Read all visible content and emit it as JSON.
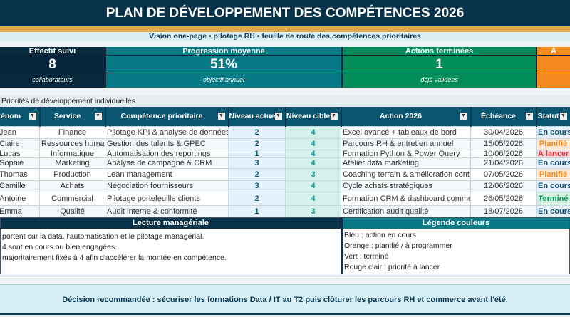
{
  "title": "PLAN DE DÉVELOPPEMENT DES COMPÉTENCES 2026",
  "subtitle": "Vision one-page • pilotage RH • feuille de route des compétences prioritaires",
  "kpis": [
    {
      "label": "Effectif suivi",
      "value": "8",
      "sub": "collaborateurs",
      "color": "#062a3c"
    },
    {
      "label": "Progression moyenne",
      "value": "51%",
      "sub": "objectif annuel",
      "color": "#087a86"
    },
    {
      "label": "Actions terminées",
      "value": "1",
      "sub": "déjà validées",
      "color": "#028c5a"
    },
    {
      "label": "À",
      "value": "",
      "sub": "",
      "color": "#f58a1f"
    }
  ],
  "section_title": "Priorités de développement individuelles",
  "table": {
    "headers": [
      "Prénom",
      "Service",
      "Compétence prioritaire",
      "Niveau actuel",
      "Niveau cible",
      "Action 2026",
      "Échéance",
      "Statut"
    ],
    "rows": [
      [
        "Jean",
        "Finance",
        "Pilotage KPI & analyse de données",
        "2",
        "4",
        "Excel avancé + tableaux de bord",
        "30/04/2026",
        "En cours"
      ],
      [
        "Claire",
        "Ressources humaines",
        "Gestion des talents & GPEC",
        "2",
        "4",
        "Parcours RH & entretien annuel",
        "15/05/2026",
        "Planifié"
      ],
      [
        "Lucas",
        "Informatique",
        "Automatisation des reportings",
        "1",
        "4",
        "Formation Python & Power Query",
        "10/06/2026",
        "À lancer"
      ],
      [
        "Sophie",
        "Marketing",
        "Analyse de campagne & CRM",
        "3",
        "4",
        "Atelier data marketing",
        "21/04/2026",
        "En cours"
      ],
      [
        "Thomas",
        "Production",
        "Lean management",
        "2",
        "3",
        "Coaching terrain & amélioration continue",
        "07/05/2026",
        "Planifié"
      ],
      [
        "Camille",
        "Achats",
        "Négociation fournisseurs",
        "3",
        "4",
        "Cycle achats stratégiques",
        "12/06/2026",
        "En cours"
      ],
      [
        "Antoine",
        "Commercial",
        "Pilotage portefeuille clients",
        "2",
        "4",
        "Formation CRM & dashboard commercial",
        "26/05/2026",
        "Terminé"
      ],
      [
        "Emma",
        "Qualité",
        "Audit interne & conformité",
        "1",
        "3",
        "Certification audit qualité",
        "18/07/2026",
        "En cours"
      ]
    ]
  },
  "status_colors": {
    "En cours": [
      "#e5f1fb",
      "#17587a"
    ],
    "Planifié": [
      "#fde9d4",
      "#f58a1f"
    ],
    "À lancer": [
      "#fbd9dc",
      "#e0343f"
    ],
    "Terminé": [
      "#d3efe0",
      "#0d9a5a"
    ]
  },
  "lecture": {
    "title": "Lecture managériale",
    "lines": [
      "portent sur la data, l'automatisation et le pilotage managérial.",
      "4 sont en cours ou bien engagées.",
      "majoritairement fixés à 4 afin d'accélérer la montée en compétence."
    ]
  },
  "legend": {
    "title": "Légende couleurs",
    "lines": [
      "Bleu : action en cours",
      "Orange : planifié / à programmer",
      "Vert : terminé",
      "Rouge clair : priorité à lancer"
    ]
  },
  "decision": "Décision recommandée : sécuriser les formations Data / IT au T2 puis clôturer les parcours RH et commerce avant l'été."
}
